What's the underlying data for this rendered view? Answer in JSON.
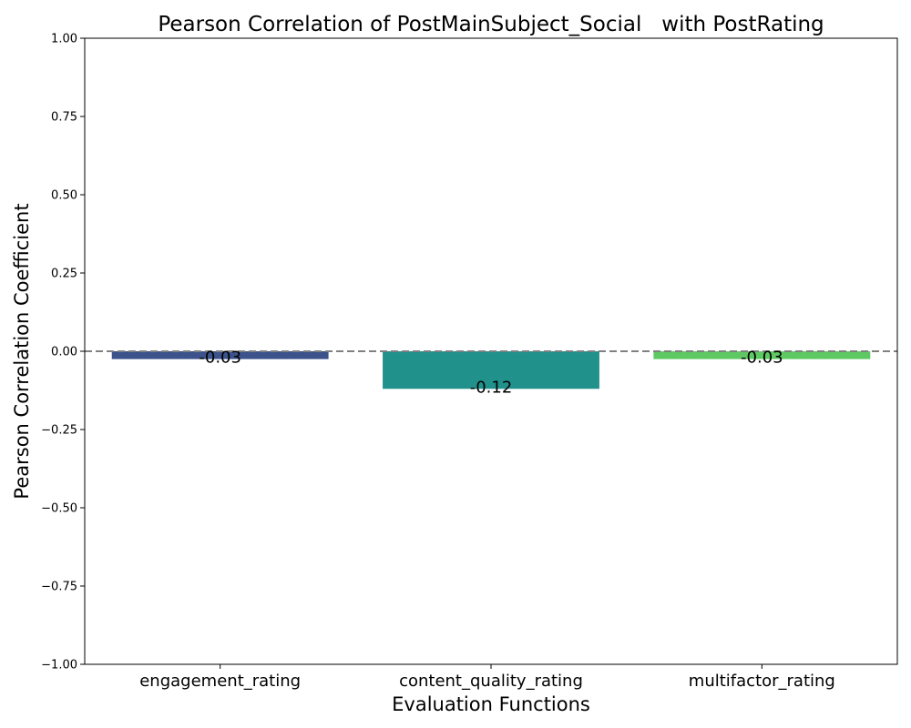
{
  "chart_data": {
    "type": "bar",
    "title": "Pearson Correlation of PostMainSubject_Social   with PostRating",
    "xlabel": "Evaluation Functions",
    "ylabel": "Pearson Correlation Coefficient",
    "categories": [
      "engagement_rating",
      "content_quality_rating",
      "multifactor_rating"
    ],
    "values": [
      -0.025,
      -0.12,
      -0.025
    ],
    "data_labels": [
      "-0.03",
      "-0.12",
      "-0.03"
    ],
    "colors": [
      "#3b528b",
      "#21918c",
      "#5ec962"
    ],
    "ylim": [
      -1.0,
      1.0
    ],
    "yticks": [
      "-1.00",
      "-0.75",
      "-0.50",
      "-0.25",
      "0.00",
      "0.25",
      "0.50",
      "0.75",
      "1.00"
    ],
    "reference_line": {
      "y": 0,
      "style": "dashed",
      "color": "#808080"
    },
    "grid": false,
    "legend": "none"
  }
}
